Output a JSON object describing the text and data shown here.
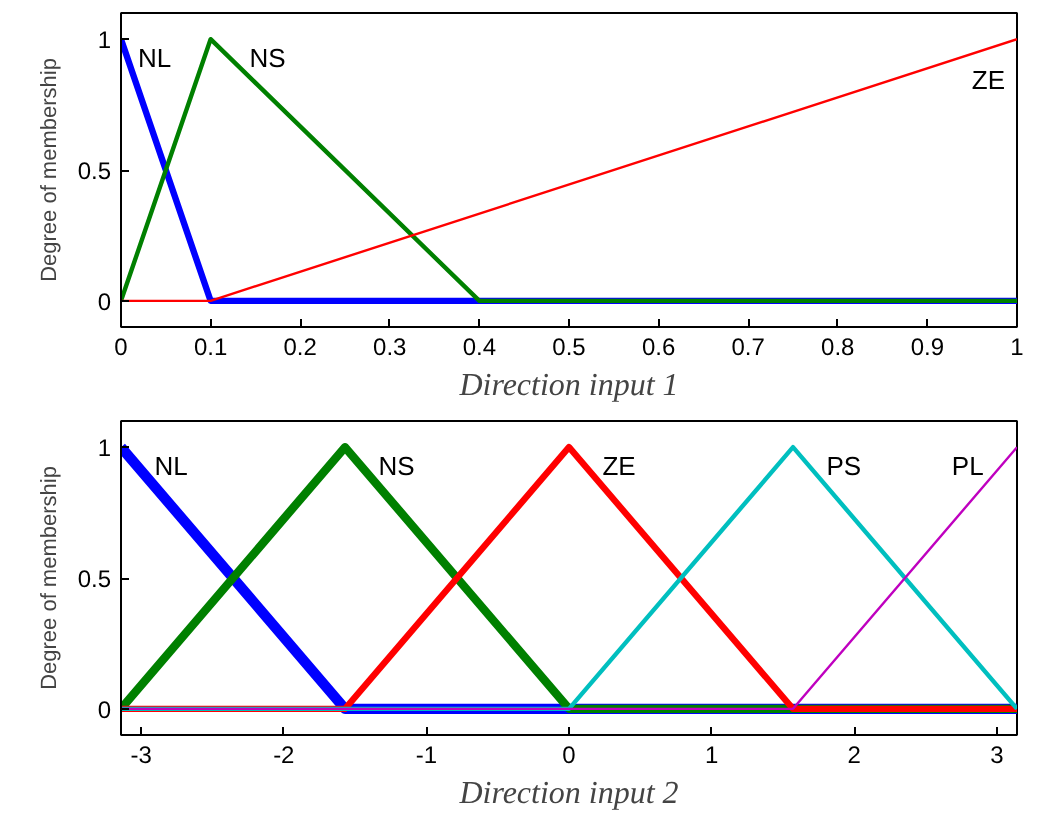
{
  "chart_data": [
    {
      "type": "line",
      "xlabel": "Direction input 1",
      "ylabel": "Degree of membership",
      "xlim": [
        0,
        1
      ],
      "ylim": [
        -0.1,
        1.1
      ],
      "xticks": [
        0,
        0.1,
        0.2,
        0.3,
        0.4,
        0.5,
        0.6,
        0.7,
        0.8,
        0.9,
        1
      ],
      "yticks": [
        0,
        0.5,
        1
      ],
      "grid": false,
      "series": [
        {
          "name": "NL",
          "color": "#0000ff",
          "x": [
            0,
            0.1,
            1
          ],
          "values": [
            1,
            0,
            0
          ]
        },
        {
          "name": "NS",
          "color": "#008000",
          "x": [
            0,
            0.1,
            0.4,
            1
          ],
          "values": [
            0,
            1,
            0,
            0
          ]
        },
        {
          "name": "ZE",
          "color": "#ff0000",
          "x": [
            0,
            0.1,
            1
          ],
          "values": [
            0,
            0,
            1
          ]
        }
      ]
    },
    {
      "type": "line",
      "xlabel": "Direction input 2",
      "ylabel": "Degree of membership",
      "xlim": [
        -3.1416,
        3.1416
      ],
      "ylim": [
        -0.1,
        1.1
      ],
      "xticks": [
        -3,
        -2,
        -1,
        0,
        1,
        2,
        3
      ],
      "yticks": [
        0,
        0.5,
        1
      ],
      "grid": false,
      "series": [
        {
          "name": "NL",
          "color": "#0000ff",
          "x": [
            -3.1416,
            -1.5708,
            3.1416
          ],
          "values": [
            1,
            0,
            0
          ]
        },
        {
          "name": "NS",
          "color": "#008000",
          "x": [
            -3.1416,
            -1.5708,
            0,
            3.1416
          ],
          "values": [
            0,
            1,
            0,
            0
          ]
        },
        {
          "name": "ZE",
          "color": "#ff0000",
          "x": [
            -3.1416,
            -1.5708,
            0,
            1.5708,
            3.1416
          ],
          "values": [
            0,
            0,
            1,
            0,
            0
          ]
        },
        {
          "name": "PS",
          "color": "#00bfbf",
          "x": [
            -3.1416,
            0,
            1.5708,
            3.1416
          ],
          "values": [
            0,
            0,
            1,
            0
          ]
        },
        {
          "name": "PL",
          "color": "#bf00bf",
          "x": [
            -3.1416,
            1.5708,
            3.1416
          ],
          "values": [
            0,
            0,
            1
          ]
        }
      ]
    }
  ]
}
